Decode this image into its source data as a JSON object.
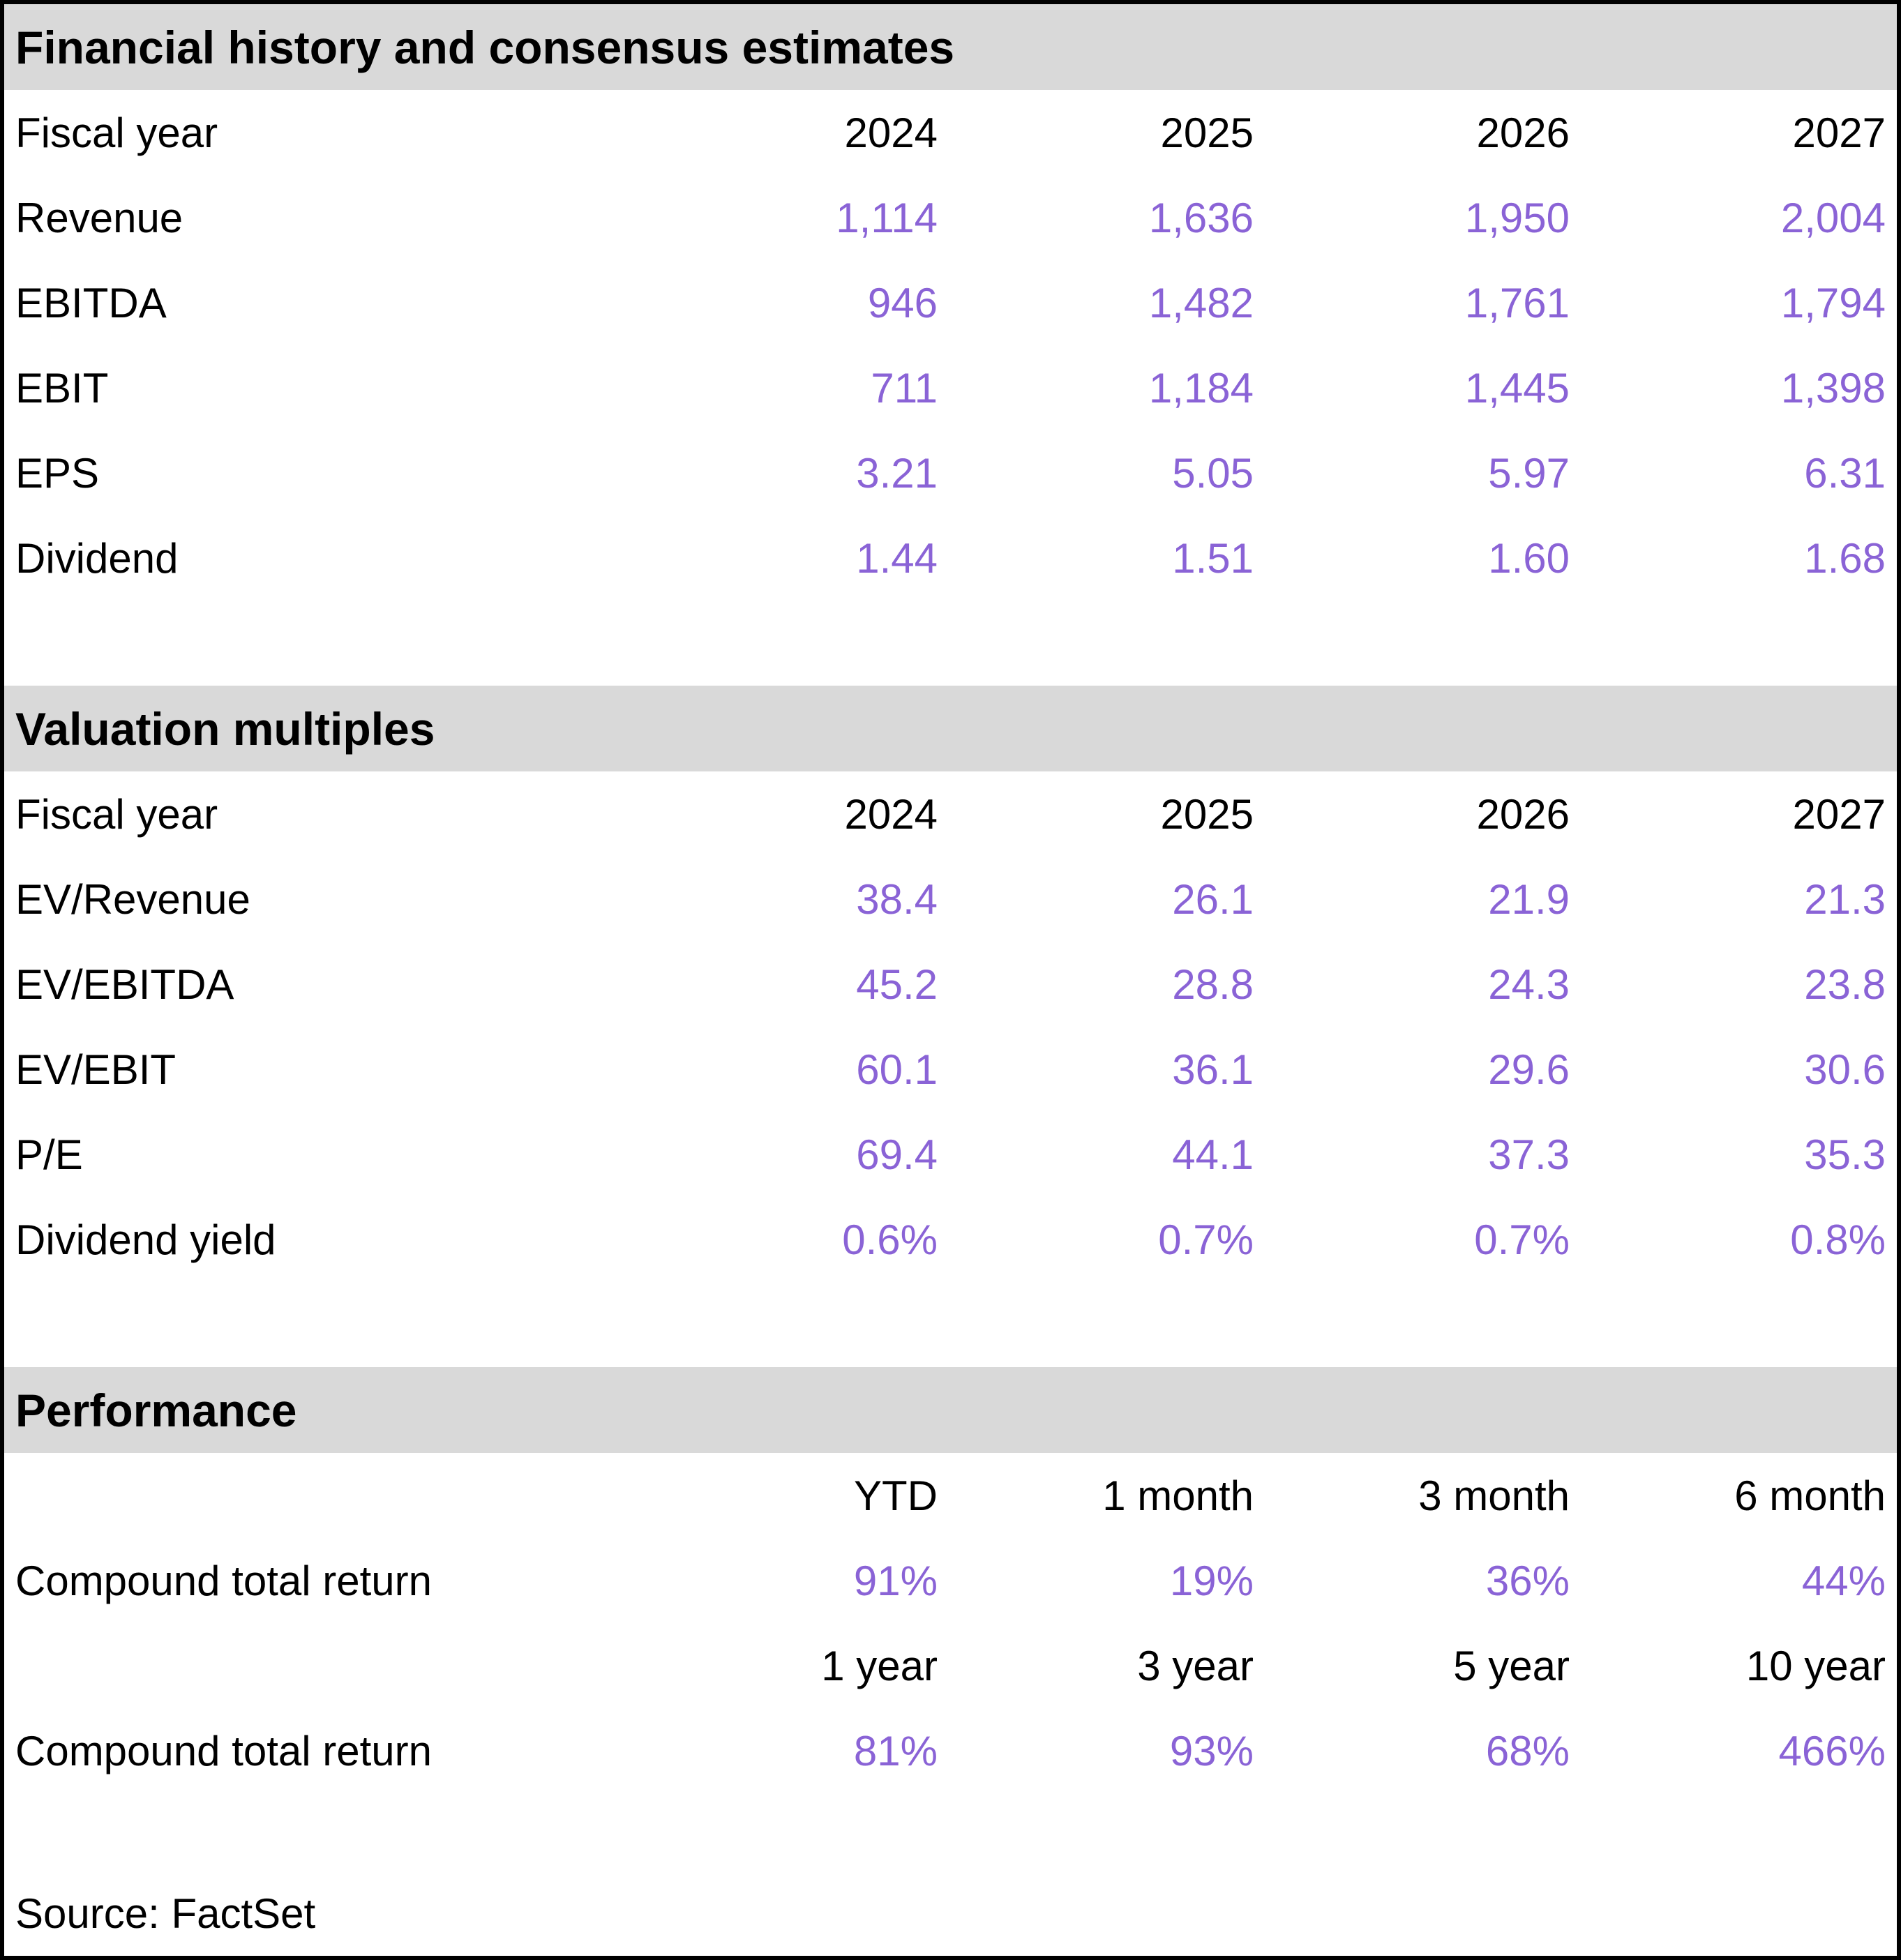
{
  "colors": {
    "value_purple": "#8a63d6",
    "section_band_gray": "#d9d9d9",
    "text_black": "#000000"
  },
  "sections": {
    "financial_history": {
      "title": "Financial history and consensus estimates",
      "fiscal_year_label": "Fiscal year",
      "years": [
        "2024",
        "2025",
        "2026",
        "2027"
      ],
      "rows": [
        {
          "label": "Revenue",
          "values": [
            "1,114",
            "1,636",
            "1,950",
            "2,004"
          ]
        },
        {
          "label": "EBITDA",
          "values": [
            "946",
            "1,482",
            "1,761",
            "1,794"
          ]
        },
        {
          "label": "EBIT",
          "values": [
            "711",
            "1,184",
            "1,445",
            "1,398"
          ]
        },
        {
          "label": "EPS",
          "values": [
            "3.21",
            "5.05",
            "5.97",
            "6.31"
          ]
        },
        {
          "label": "Dividend",
          "values": [
            "1.44",
            "1.51",
            "1.60",
            "1.68"
          ]
        }
      ]
    },
    "valuation_multiples": {
      "title": "Valuation multiples",
      "fiscal_year_label": "Fiscal year",
      "years": [
        "2024",
        "2025",
        "2026",
        "2027"
      ],
      "rows": [
        {
          "label": "EV/Revenue",
          "values": [
            "38.4",
            "26.1",
            "21.9",
            "21.3"
          ]
        },
        {
          "label": "EV/EBITDA",
          "values": [
            "45.2",
            "28.8",
            "24.3",
            "23.8"
          ]
        },
        {
          "label": "EV/EBIT",
          "values": [
            "60.1",
            "36.1",
            "29.6",
            "30.6"
          ]
        },
        {
          "label": "P/E",
          "values": [
            "69.4",
            "44.1",
            "37.3",
            "35.3"
          ]
        },
        {
          "label": "Dividend yield",
          "values": [
            "0.6%",
            "0.7%",
            "0.7%",
            "0.8%"
          ]
        }
      ]
    },
    "performance": {
      "title": "Performance",
      "period_rows": [
        {
          "headers": [
            "YTD",
            "1 month",
            "3 month",
            "6 month"
          ],
          "label": "Compound total return",
          "values": [
            "91%",
            "19%",
            "36%",
            "44%"
          ]
        },
        {
          "headers": [
            "1 year",
            "3 year",
            "5 year",
            "10 year"
          ],
          "label": "Compound total return",
          "values": [
            "81%",
            "93%",
            "68%",
            "466%"
          ]
        }
      ]
    },
    "source": {
      "text": "Source: FactSet"
    }
  }
}
